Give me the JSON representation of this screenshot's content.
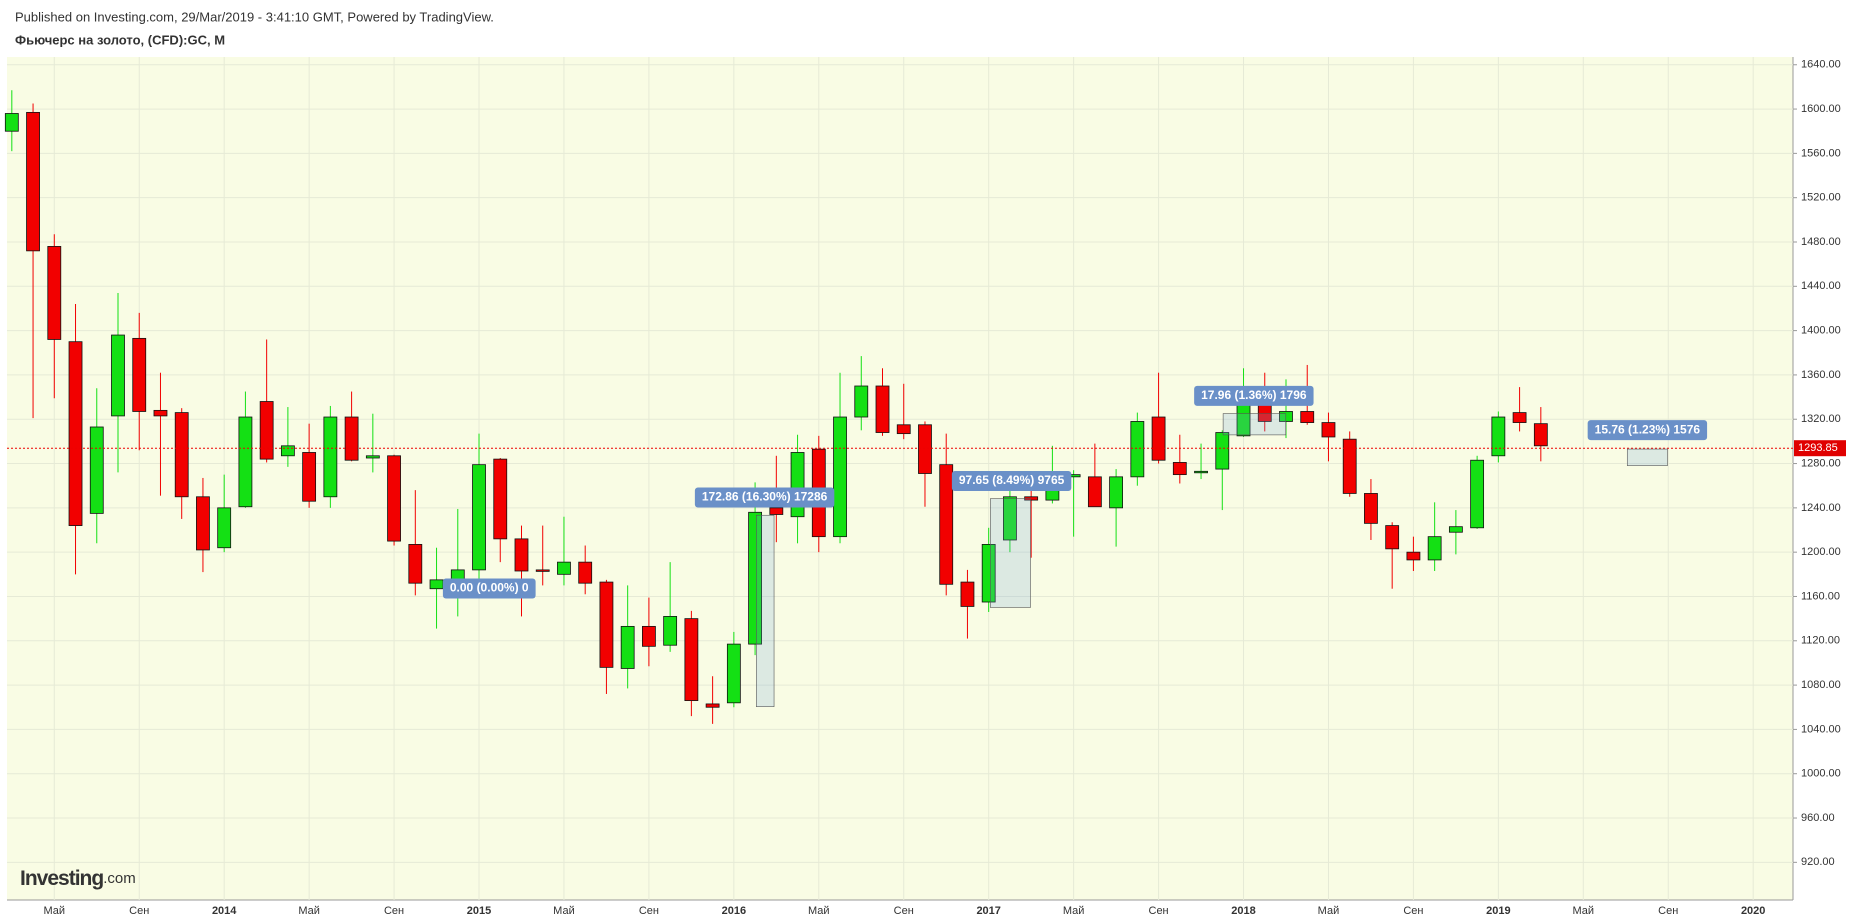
{
  "header": {
    "published": "Published on Investing.com, 29/Mar/2019 - 3:41:10 GMT, Powered by TradingView.",
    "instrument": "Фьючерс на золото, (CFD):GC, M"
  },
  "logo": {
    "main": "Investing",
    "suffix": ".com"
  },
  "chart_data": {
    "type": "candlestick",
    "categories": [
      null,
      null,
      "Май",
      null,
      null,
      null,
      "Сен",
      null,
      null,
      null,
      "2014",
      null,
      null,
      null,
      "Май",
      null,
      null,
      null,
      "Сен",
      null,
      null,
      null,
      "2015",
      null,
      null,
      null,
      "Май",
      null,
      null,
      null,
      "Сен",
      null,
      null,
      null,
      "2016",
      null,
      null,
      null,
      "Май",
      null,
      null,
      null,
      "Сен",
      null,
      null,
      null,
      "2017",
      null,
      null,
      null,
      "Май",
      null,
      null,
      null,
      "Сен",
      null,
      null,
      null,
      "2018",
      null,
      null,
      null,
      "Май",
      null,
      null,
      null,
      "Сен",
      null,
      null,
      null,
      "2019",
      null,
      null,
      null,
      "Май",
      null,
      null,
      null,
      "Сен",
      null,
      null,
      null,
      "2020",
      null
    ],
    "open": [
      1580,
      1597,
      1476,
      1390,
      1235,
      1323,
      1393,
      1328,
      1326,
      1250,
      1204,
      1241,
      1336,
      1287,
      1290,
      1250,
      1322,
      1285,
      1287,
      1207,
      1167,
      1162,
      1184,
      1284,
      1212,
      1184,
      1180,
      1191,
      1173,
      1095,
      1133,
      1116,
      1140,
      1063,
      1064,
      1117,
      1240,
      1232,
      1293,
      1214,
      1322,
      1350,
      1315,
      1315,
      1279,
      1173,
      1155,
      1211,
      1250,
      1247,
      1268,
      1268,
      1240,
      1268,
      1322,
      1281,
      1272,
      1275,
      1305,
      1344,
      1318,
      1327,
      1317,
      1302,
      1253,
      1224,
      1200,
      1193,
      1218,
      1222,
      1287,
      1326,
      1316,
      null,
      null,
      null,
      null,
      null,
      null,
      null,
      null,
      null,
      null,
      null
    ],
    "high": [
      1617,
      1605,
      1487,
      1424,
      1348,
      1434,
      1416,
      1362,
      1330,
      1267,
      1270,
      1345,
      1392,
      1331,
      1316,
      1332,
      1345,
      1325,
      1288,
      1256,
      1204,
      1239,
      1307,
      1285,
      1224,
      1224,
      1232,
      1206,
      1175,
      1170,
      1159,
      1191,
      1147,
      1088,
      1128,
      1263,
      1287,
      1306,
      1305,
      1362,
      1377,
      1366,
      1352,
      1318,
      1307,
      1184,
      1222,
      1264,
      1264,
      1296,
      1274,
      1298,
      1275,
      1326,
      1362,
      1306,
      1298,
      1310,
      1366,
      1362,
      1356,
      1369,
      1326,
      1309,
      1266,
      1227,
      1214,
      1245,
      1238,
      1287,
      1327,
      1349,
      1331,
      null,
      null,
      null,
      null,
      null,
      null,
      null,
      null,
      null,
      null,
      null
    ],
    "low": [
      1562,
      1321,
      1339,
      1180,
      1208,
      1272,
      1292,
      1251,
      1230,
      1182,
      1200,
      1240,
      1281,
      1277,
      1240,
      1240,
      1282,
      1272,
      1206,
      1161,
      1131,
      1142,
      1167,
      1191,
      1142,
      1170,
      1170,
      1162,
      1072,
      1077,
      1097,
      1110,
      1052,
      1045,
      1060,
      1107,
      1209,
      1208,
      1200,
      1208,
      1310,
      1305,
      1302,
      1241,
      1161,
      1122,
      1146,
      1200,
      1195,
      1244,
      1214,
      1241,
      1205,
      1260,
      1280,
      1262,
      1266,
      1238,
      1304,
      1309,
      1303,
      1315,
      1282,
      1250,
      1211,
      1167,
      1183,
      1183,
      1198,
      1221,
      1281,
      1309,
      1282,
      null,
      null,
      null,
      null,
      null,
      null,
      null,
      null,
      null,
      null,
      null
    ],
    "close": [
      1596,
      1472,
      1392,
      1224,
      1313,
      1396,
      1327,
      1323,
      1250,
      1202,
      1240,
      1322,
      1284,
      1296,
      1246,
      1322,
      1283,
      1287,
      1210,
      1172,
      1175,
      1184,
      1279,
      1212,
      1183,
      1183,
      1191,
      1172,
      1096,
      1133,
      1115,
      1142,
      1066,
      1060,
      1117,
      1236,
      1234,
      1290,
      1214,
      1322,
      1350,
      1308,
      1307,
      1271,
      1171,
      1151,
      1207,
      1250,
      1247,
      1268,
      1270,
      1241,
      1268,
      1318,
      1283,
      1270,
      1273,
      1308,
      1343,
      1318,
      1327,
      1317,
      1304,
      1253,
      1226,
      1203,
      1193,
      1214,
      1223,
      1283,
      1322,
      1317,
      1296,
      null,
      null,
      null,
      null,
      null,
      null,
      null,
      null,
      null,
      null,
      null
    ],
    "up_color": "#14e014",
    "down_color": "#f20000",
    "ylim": [
      886,
      1647
    ],
    "yticks": [
      {
        "value": 920,
        "label": "920.00"
      },
      {
        "value": 960,
        "label": "960.00"
      },
      {
        "value": 1000,
        "label": "1000.00"
      },
      {
        "value": 1040,
        "label": "1040.00"
      },
      {
        "value": 1080,
        "label": "1080.00"
      },
      {
        "value": 1120,
        "label": "1120.00"
      },
      {
        "value": 1160,
        "label": "1160.00"
      },
      {
        "value": 1200,
        "label": "1200.00"
      },
      {
        "value": 1240,
        "label": "1240.00"
      },
      {
        "value": 1280,
        "label": "1280.00"
      },
      {
        "value": 1320,
        "label": "1320.00"
      },
      {
        "value": 1360,
        "label": "1360.00"
      },
      {
        "value": 1400,
        "label": "1400.00"
      },
      {
        "value": 1440,
        "label": "1440.00"
      },
      {
        "value": 1480,
        "label": "1480.00"
      },
      {
        "value": 1520,
        "label": "1520.00"
      },
      {
        "value": 1560,
        "label": "1560.00"
      },
      {
        "value": 1600,
        "label": "1600.00"
      },
      {
        "value": 1640,
        "label": "1640.00"
      }
    ],
    "grid": true,
    "last_price": 1293.85,
    "annotations": [
      "17.96 (1.36%) 1796",
      "172.86 (16.30%) 17286",
      "97.65 (8.49%) 9765",
      "0.00 (0.00%) 0",
      "15.76 (1.23%) 1576"
    ]
  }
}
